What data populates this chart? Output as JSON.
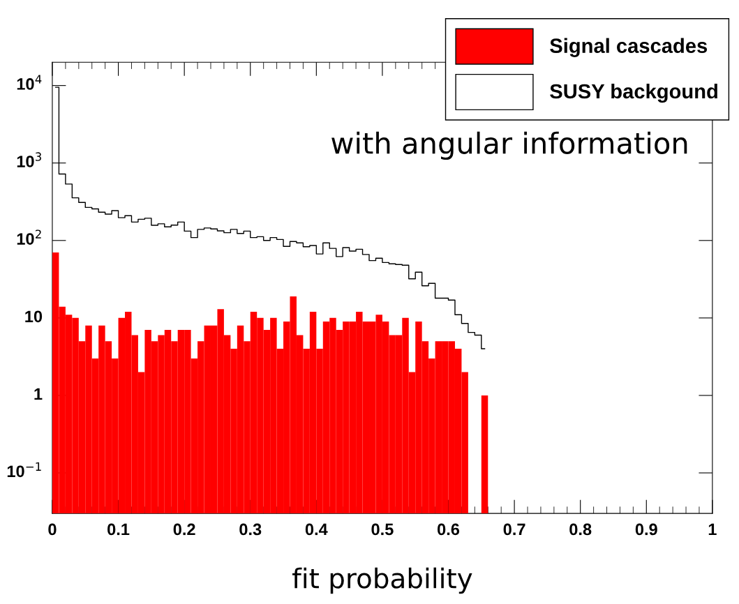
{
  "chart_data": {
    "type": "histogram",
    "xlabel": "fit probability",
    "annotations": [
      "with angular information"
    ],
    "bins": [
      0,
      0.01,
      0.02,
      0.03,
      0.04,
      0.05,
      0.06,
      0.07,
      0.08,
      0.09,
      0.1,
      0.11,
      0.12,
      0.13,
      0.14,
      0.15,
      0.16,
      0.17,
      0.18,
      0.19,
      0.2,
      0.21,
      0.22,
      0.23,
      0.24,
      0.25,
      0.26,
      0.27,
      0.28,
      0.29,
      0.3,
      0.31,
      0.32,
      0.33,
      0.34,
      0.35,
      0.36,
      0.37,
      0.38,
      0.39,
      0.4,
      0.41,
      0.42,
      0.43,
      0.44,
      0.45,
      0.46,
      0.47,
      0.48,
      0.49,
      0.5,
      0.51,
      0.52,
      0.53,
      0.54,
      0.55,
      0.56,
      0.57,
      0.58,
      0.59,
      0.6,
      0.61,
      0.62,
      0.63,
      0.64,
      0.65,
      0.66,
      0.67,
      0.68,
      0.69,
      0.7,
      0.71,
      0.72,
      0.73,
      0.74,
      0.75,
      0.76,
      0.77,
      0.78,
      0.79,
      0.8,
      0.81,
      0.82,
      0.83,
      0.84,
      0.85,
      0.86,
      0.87,
      0.88,
      0.89,
      0.9,
      0.91,
      0.92,
      0.93,
      0.94,
      0.95,
      0.96,
      0.97,
      0.98,
      0.99,
      1
    ],
    "series": [
      {
        "name": "SUSY backgound",
        "type": "step",
        "color": "#000000",
        "x": [
          0.005,
          0.015,
          0.025,
          0.035,
          0.045,
          0.055,
          0.065,
          0.075,
          0.085,
          0.095,
          0.105,
          0.115,
          0.125,
          0.135,
          0.145,
          0.155,
          0.165,
          0.175,
          0.185,
          0.195,
          0.205,
          0.215,
          0.225,
          0.235,
          0.245,
          0.255,
          0.265,
          0.275,
          0.285,
          0.295,
          0.305,
          0.315,
          0.325,
          0.335,
          0.345,
          0.355,
          0.365,
          0.375,
          0.385,
          0.395,
          0.405,
          0.415,
          0.425,
          0.435,
          0.445,
          0.455,
          0.465,
          0.475,
          0.485,
          0.495,
          0.505,
          0.515,
          0.525,
          0.535,
          0.545,
          0.555,
          0.565,
          0.575,
          0.585,
          0.595,
          0.605,
          0.615,
          0.625,
          0.635,
          0.645,
          0.655
        ],
        "values": [
          9500,
          720,
          535,
          355,
          310,
          267,
          256,
          232,
          219,
          243,
          197,
          209,
          173,
          188,
          194,
          157,
          164,
          150,
          158,
          173,
          132,
          109,
          139,
          145,
          141,
          133,
          126,
          139,
          123,
          132,
          109,
          112,
          100,
          109,
          103,
          84,
          97,
          93,
          83,
          86,
          67,
          93,
          79,
          62,
          81,
          73,
          77,
          66,
          55,
          59,
          52,
          50,
          49,
          48,
          32,
          39,
          26,
          28,
          18,
          18,
          17,
          11,
          8.5,
          6.5,
          6,
          4
        ]
      },
      {
        "name": "Signal cascades",
        "color": "#ff0000",
        "values": [
          70,
          14,
          11,
          10,
          5,
          8,
          3,
          8,
          5,
          3,
          10,
          12,
          6,
          2,
          7,
          5,
          6,
          7,
          5,
          7,
          7,
          3,
          5,
          8,
          8,
          13,
          6,
          4,
          8,
          5,
          12,
          10,
          7,
          10,
          4,
          9,
          19,
          6,
          4,
          12,
          4,
          9,
          10,
          7,
          9,
          9,
          12,
          9,
          9,
          11,
          9,
          6,
          6,
          10,
          2,
          9,
          5,
          3,
          5,
          5,
          5,
          4,
          2,
          null,
          null,
          1,
          null,
          null,
          null,
          null,
          null,
          null,
          null,
          null,
          null,
          null,
          null,
          null,
          null,
          null,
          null,
          null,
          null,
          null,
          null,
          null,
          null,
          null,
          null,
          null,
          null,
          null,
          null,
          null,
          null,
          null,
          null,
          null,
          null,
          null
        ]
      }
    ],
    "log": "y",
    "xlim": [
      0,
      1
    ],
    "ylim": [
      0.03,
      20000
    ],
    "xticks": [
      0,
      0.1,
      0.2,
      0.3,
      0.4,
      0.5,
      0.6,
      0.7,
      0.8,
      0.9,
      1
    ],
    "yticks": [
      {
        "value": 0.1,
        "label": "10$^{−1}$"
      },
      1,
      10,
      {
        "value": 100,
        "label": "10$^{2}$"
      },
      {
        "value": 1000,
        "label": "10$^{3}$"
      },
      {
        "value": 10000,
        "label": "10$^{4}$"
      }
    ],
    "legend": "top right"
  }
}
